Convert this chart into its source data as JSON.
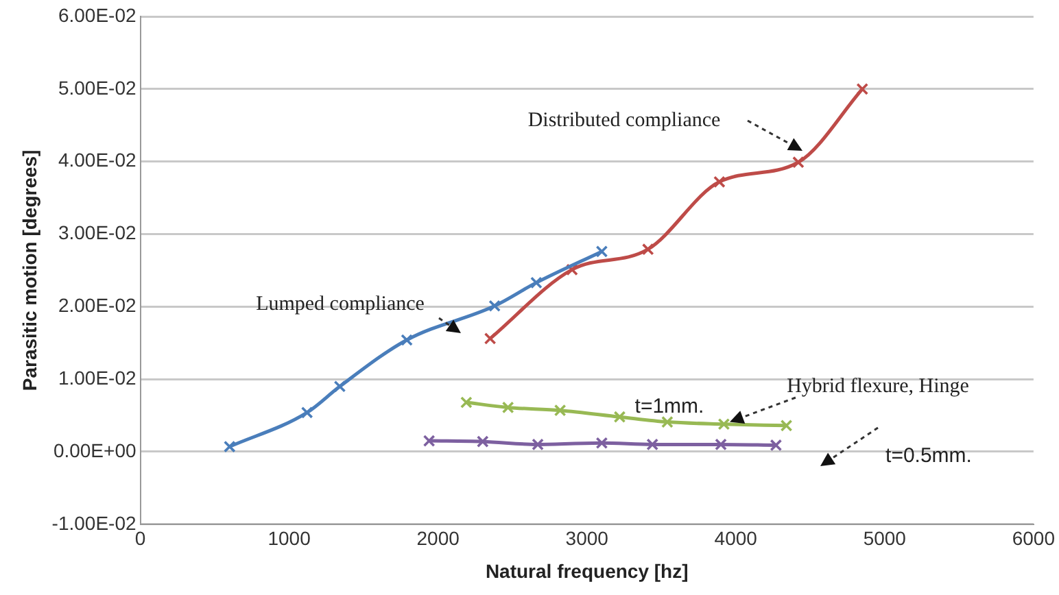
{
  "chart_data": {
    "type": "line",
    "xlabel": "Natural frequency [hz]",
    "ylabel": "Parasitic motion [degrees]",
    "xlim": [
      0,
      6000
    ],
    "xticks": [
      0,
      1000,
      2000,
      3000,
      4000,
      5000,
      6000
    ],
    "ylim": [
      -0.01,
      0.06
    ],
    "yticks": [
      {
        "value": -0.01,
        "label": "-1.00E-02"
      },
      {
        "value": 0,
        "label": "0.00E+00"
      },
      {
        "value": 0.01,
        "label": "1.00E-02"
      },
      {
        "value": 0.02,
        "label": "2.00E-02"
      },
      {
        "value": 0.03,
        "label": "3.00E-02"
      },
      {
        "value": 0.04,
        "label": "4.00E-02"
      },
      {
        "value": 0.05,
        "label": "5.00E-02"
      },
      {
        "value": 0.06,
        "label": "6.00E-02"
      }
    ],
    "grid": "y",
    "legend": false,
    "marker": "cross",
    "line_style": "solid",
    "series": [
      {
        "name": "Lumped compliance",
        "color": "#4a7ebb",
        "x": [
          600,
          1120,
          1340,
          1790,
          2380,
          2660,
          3100
        ],
        "values": [
          0.0007,
          0.0054,
          0.009,
          0.0154,
          0.0201,
          0.0233,
          0.0276
        ]
      },
      {
        "name": "Distributed compliance",
        "color": "#be4b48",
        "x": [
          2350,
          2900,
          3410,
          3890,
          4420,
          4850
        ],
        "values": [
          0.0156,
          0.0251,
          0.0279,
          0.0372,
          0.0399,
          0.05
        ]
      },
      {
        "color": "#98b954",
        "x": [
          2190,
          2470,
          2820,
          3220,
          3540,
          3920,
          4340
        ],
        "values": [
          0.0068,
          0.0061,
          0.0057,
          0.0048,
          0.0041,
          0.0038,
          0.0036
        ]
      },
      {
        "color": "#7d60a0",
        "x": [
          1940,
          2300,
          2670,
          3100,
          3440,
          3900,
          4270
        ],
        "values": [
          0.0015,
          0.0014,
          0.001,
          0.0012,
          0.001,
          0.001,
          0.0009
        ]
      }
    ],
    "annotations": [
      {
        "text": "Hybrid flexure, Hinge",
        "x": 3960,
        "y": 0.0041
      },
      "t=1mm.",
      "t=0.5mm."
    ]
  }
}
